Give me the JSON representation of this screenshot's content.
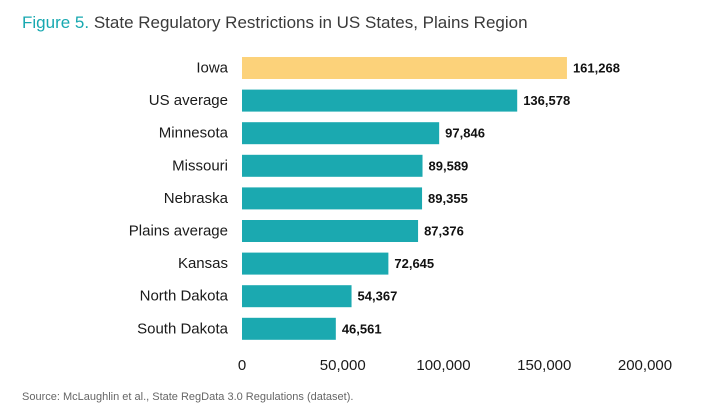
{
  "title": {
    "figure": "Figure 5.",
    "text": "State Regulatory Restrictions in US States, Plains Region"
  },
  "source": "Source: McLaughlin et al., State RegData 3.0 Regulations (dataset).",
  "colors": {
    "highlight": "#fcd27a",
    "bar": "#1ba9b0",
    "figure_label": "#17a8b0"
  },
  "chart_data": {
    "type": "bar",
    "orientation": "horizontal",
    "title": "State Regulatory Restrictions in US States, Plains Region",
    "xlabel": "",
    "ylabel": "",
    "xlim": [
      0,
      200000
    ],
    "grid": false,
    "categories": [
      "Iowa",
      "US average",
      "Minnesota",
      "Missouri",
      "Nebraska",
      "Plains average",
      "Kansas",
      "North Dakota",
      "South Dakota"
    ],
    "values": [
      161268,
      136578,
      97846,
      89589,
      89355,
      87376,
      72645,
      54367,
      46561
    ],
    "value_labels": [
      "161,268",
      "136,578",
      "97,846",
      "89,589",
      "89,355",
      "87,376",
      "72,645",
      "54,367",
      "46,561"
    ],
    "highlight_index": 0,
    "x_ticks": [
      0,
      50000,
      100000,
      150000,
      200000
    ],
    "x_tick_labels": [
      "0",
      "50,000",
      "100,000",
      "150,000",
      "200,000"
    ]
  }
}
